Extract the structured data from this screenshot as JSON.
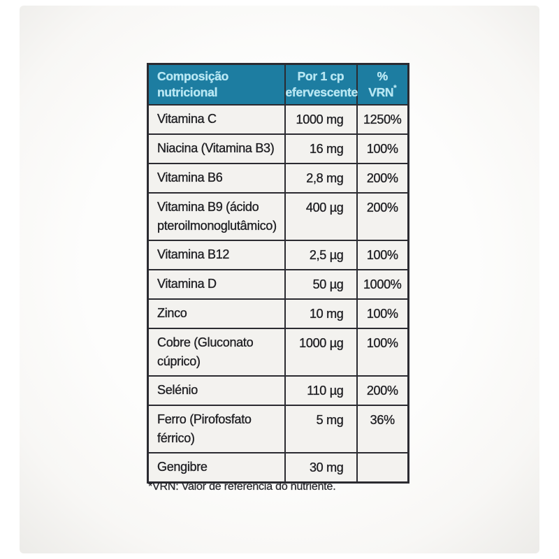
{
  "colors": {
    "header_bg": "#1d7da1",
    "header_text": "#b8e7f3",
    "cell_bg": "#f3f2ef",
    "border": "#2b2b31",
    "body_text": "#1f1f23"
  },
  "table": {
    "header": {
      "composition": "Composição\nnutricional",
      "per_tablet": "Por 1 cp\nefervescente",
      "vrn_percent": "%",
      "vrn_label": "VRN",
      "vrn_asterisk": "*"
    },
    "rows": [
      {
        "name": "Vitamina C",
        "amount": "1000 mg",
        "vrn": "1250%"
      },
      {
        "name": "Niacina (Vitamina B3)",
        "amount": "16 mg",
        "vrn": "100%"
      },
      {
        "name": "Vitamina B6",
        "amount": "2,8 mg",
        "vrn": "200%"
      },
      {
        "name": "Vitamina B9 (ácido\npteroilmonoglutâmico)",
        "amount": "400 µg",
        "vrn": "200%"
      },
      {
        "name": "Vitamina B12",
        "amount": "2,5 µg",
        "vrn": "100%"
      },
      {
        "name": "Vitamina D",
        "amount": "50 µg",
        "vrn": "1000%"
      },
      {
        "name": "Zinco",
        "amount": "10 mg",
        "vrn": "100%"
      },
      {
        "name": "Cobre (Gluconato\ncúprico)",
        "amount": "1000 µg",
        "vrn": "100%"
      },
      {
        "name": "Selénio",
        "amount": "110 µg",
        "vrn": "200%"
      },
      {
        "name": "Ferro (Pirofosfato\nférrico)",
        "amount": "5 mg",
        "vrn": "36%"
      },
      {
        "name": "Gengibre",
        "amount": "30 mg",
        "vrn": ""
      }
    ],
    "footnote": "*VRN: Valor de referência do nutriente."
  }
}
